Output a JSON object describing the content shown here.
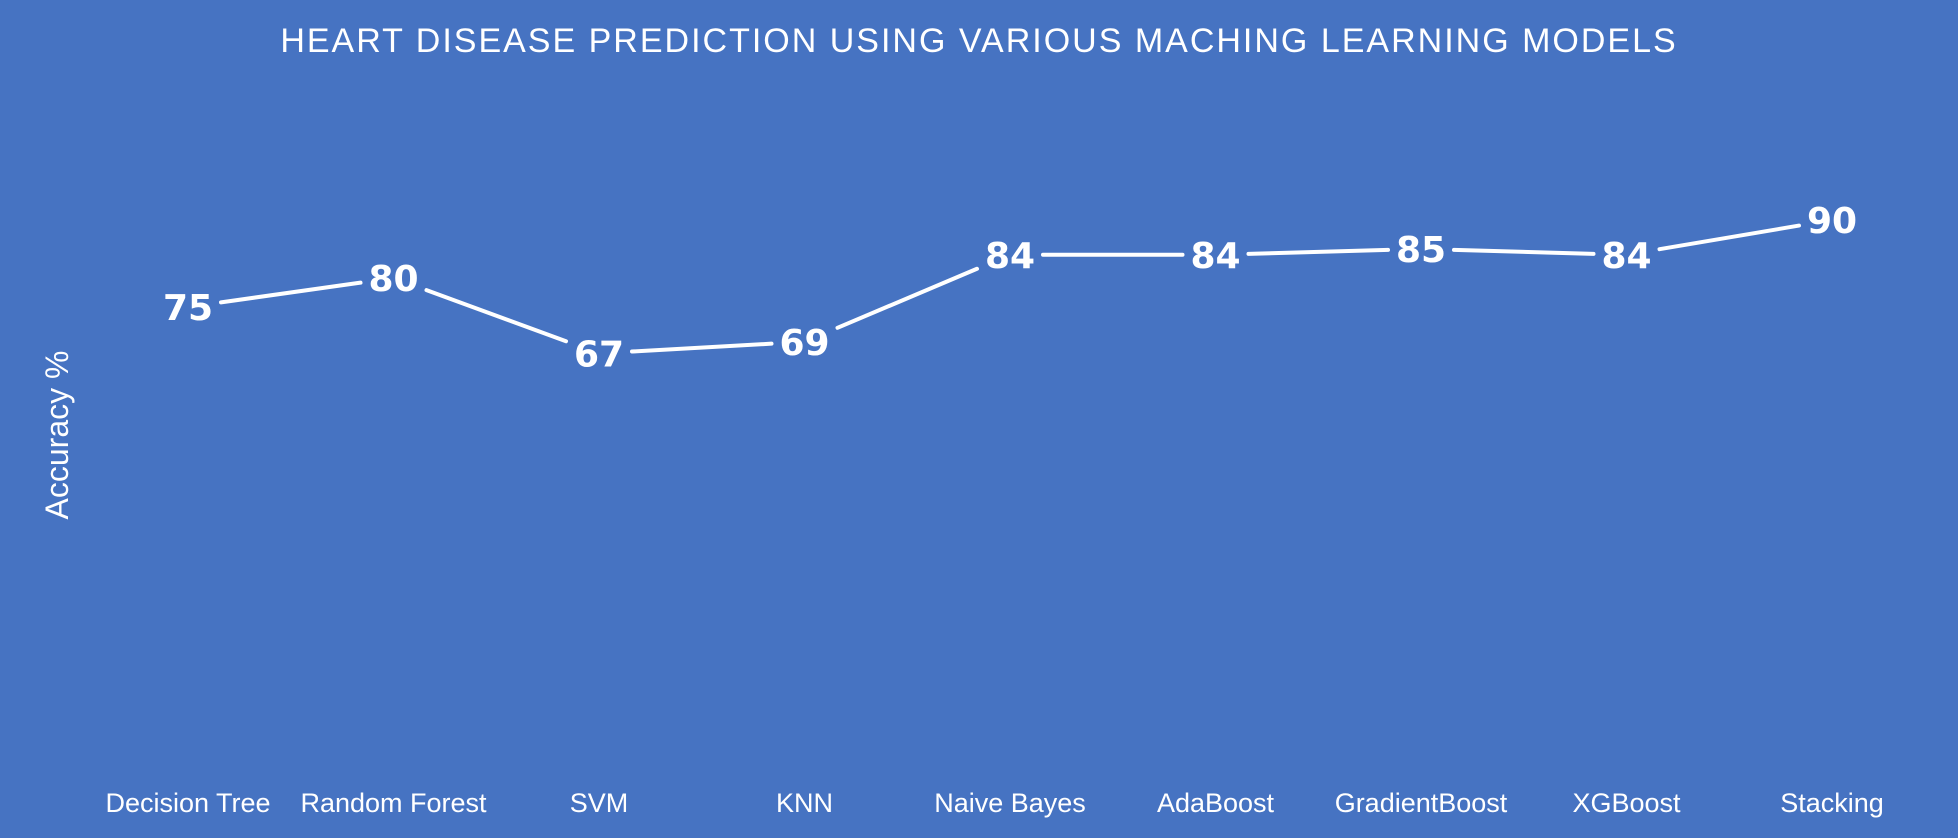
{
  "chart_data": {
    "type": "line",
    "title": "HEART DISEASE PREDICTION USING VARIOUS MACHING LEARNING MODELS",
    "xlabel": "",
    "ylabel": "Accuracy %",
    "categories": [
      "Decision Tree",
      "Random Forest",
      "SVM",
      "KNN",
      "Naive Bayes",
      "AdaBoost",
      "GradientBoost",
      "XGBoost",
      "Stacking"
    ],
    "series": [
      {
        "values": [
          75,
          80,
          67,
          69,
          84,
          84,
          85,
          84,
          90
        ]
      }
    ],
    "data_labels": [
      "75",
      "80",
      "67",
      "69",
      "84",
      "84",
      "85",
      "84",
      "90"
    ],
    "grid": false,
    "legend": "none",
    "colors": {
      "background": "#4673c2",
      "line": "#ffffff",
      "text": "#ffffff"
    }
  }
}
